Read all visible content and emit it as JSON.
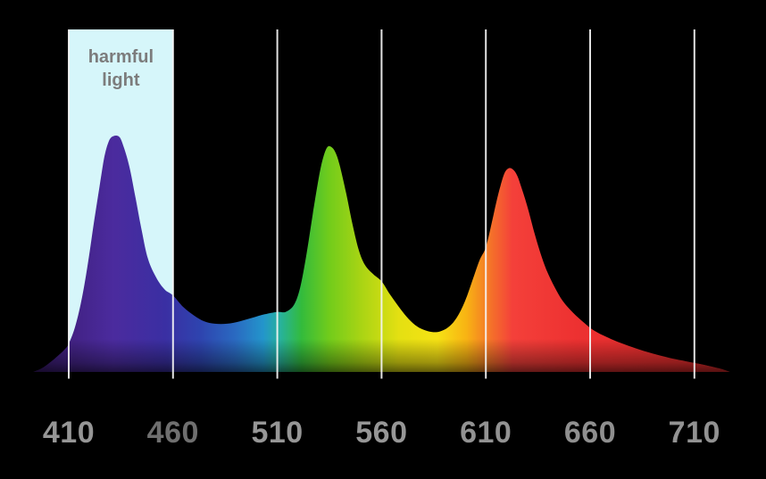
{
  "page": {
    "background_color": "#000000"
  },
  "band": {
    "label_line1": "harmful",
    "label_line2": "light",
    "fill_color": "#d6f6fa",
    "text_color": "#7c7c7c",
    "range_nm": [
      410,
      460
    ]
  },
  "axis": {
    "gridline_color": "#f4f4f4",
    "ticks": [
      {
        "label": "410",
        "nm": 410,
        "color": "#969696"
      },
      {
        "label": "460",
        "nm": 460,
        "color": "#6f6f6f"
      },
      {
        "label": "510",
        "nm": 510,
        "color": "#969696"
      },
      {
        "label": "560",
        "nm": 560,
        "color": "#969696"
      },
      {
        "label": "610",
        "nm": 610,
        "color": "#929292"
      },
      {
        "label": "660",
        "nm": 660,
        "color": "#8f8f8f"
      },
      {
        "label": "710",
        "nm": 710,
        "color": "#929292"
      }
    ]
  },
  "chart_data": {
    "type": "area",
    "title": "",
    "xlabel": "",
    "ylabel": "",
    "x_tick_labels": [
      "410",
      "460",
      "510",
      "560",
      "610",
      "660",
      "710"
    ],
    "x_units_nm": [
      410,
      460,
      510,
      560,
      610,
      660,
      710
    ],
    "xlim_nm": [
      393,
      727
    ],
    "ylim": [
      0,
      1
    ],
    "grid": "vertical-white-lines-over-fill",
    "annotations": [
      {
        "text": "harmful light",
        "type": "highlight-band",
        "x_range_nm": [
          410,
          460
        ]
      }
    ],
    "peaks": [
      {
        "nm": 431,
        "intensity": 1.0,
        "color_zone": "violet"
      },
      {
        "nm": 535,
        "intensity": 0.955,
        "color_zone": "green"
      },
      {
        "nm": 620,
        "intensity": 0.865,
        "color_zone": "red"
      }
    ],
    "points": [
      [
        393,
        0.0
      ],
      [
        397,
        0.015
      ],
      [
        401,
        0.04
      ],
      [
        405,
        0.07
      ],
      [
        408,
        0.095
      ],
      [
        410,
        0.12
      ],
      [
        413,
        0.19
      ],
      [
        416,
        0.3
      ],
      [
        419,
        0.45
      ],
      [
        422,
        0.63
      ],
      [
        425,
        0.8
      ],
      [
        427,
        0.91
      ],
      [
        429,
        0.975
      ],
      [
        431,
        1.0
      ],
      [
        434,
        1.0
      ],
      [
        436,
        0.965
      ],
      [
        439,
        0.875
      ],
      [
        442,
        0.74
      ],
      [
        445,
        0.6
      ],
      [
        448,
        0.48
      ],
      [
        452,
        0.4
      ],
      [
        456,
        0.35
      ],
      [
        460,
        0.325
      ],
      [
        465,
        0.275
      ],
      [
        470,
        0.24
      ],
      [
        475,
        0.215
      ],
      [
        480,
        0.205
      ],
      [
        486,
        0.205
      ],
      [
        492,
        0.215
      ],
      [
        498,
        0.23
      ],
      [
        504,
        0.245
      ],
      [
        510,
        0.255
      ],
      [
        514,
        0.255
      ],
      [
        518,
        0.285
      ],
      [
        521,
        0.36
      ],
      [
        524,
        0.5
      ],
      [
        527,
        0.67
      ],
      [
        530,
        0.83
      ],
      [
        532,
        0.91
      ],
      [
        534,
        0.955
      ],
      [
        536,
        0.955
      ],
      [
        538,
        0.93
      ],
      [
        540,
        0.875
      ],
      [
        543,
        0.76
      ],
      [
        546,
        0.63
      ],
      [
        549,
        0.52
      ],
      [
        552,
        0.455
      ],
      [
        556,
        0.415
      ],
      [
        560,
        0.385
      ],
      [
        564,
        0.33
      ],
      [
        568,
        0.28
      ],
      [
        572,
        0.235
      ],
      [
        576,
        0.2
      ],
      [
        580,
        0.18
      ],
      [
        584,
        0.17
      ],
      [
        588,
        0.172
      ],
      [
        592,
        0.19
      ],
      [
        596,
        0.23
      ],
      [
        600,
        0.3
      ],
      [
        604,
        0.4
      ],
      [
        607,
        0.475
      ],
      [
        610,
        0.53
      ],
      [
        613,
        0.64
      ],
      [
        615,
        0.72
      ],
      [
        617,
        0.79
      ],
      [
        619,
        0.845
      ],
      [
        621,
        0.865
      ],
      [
        623,
        0.86
      ],
      [
        625,
        0.835
      ],
      [
        627,
        0.785
      ],
      [
        630,
        0.7
      ],
      [
        633,
        0.6
      ],
      [
        636,
        0.51
      ],
      [
        639,
        0.435
      ],
      [
        643,
        0.36
      ],
      [
        647,
        0.3
      ],
      [
        652,
        0.25
      ],
      [
        657,
        0.21
      ],
      [
        662,
        0.175
      ],
      [
        668,
        0.148
      ],
      [
        675,
        0.122
      ],
      [
        682,
        0.1
      ],
      [
        690,
        0.078
      ],
      [
        698,
        0.06
      ],
      [
        706,
        0.045
      ],
      [
        712,
        0.035
      ],
      [
        718,
        0.023
      ],
      [
        723,
        0.012
      ],
      [
        727,
        0.0
      ]
    ],
    "fill_gradient": [
      {
        "offset": 0.0,
        "color": "#3a1a6d"
      },
      {
        "offset": 0.115,
        "color": "#4b2b9e"
      },
      {
        "offset": 0.19,
        "color": "#3a2fa3"
      },
      {
        "offset": 0.24,
        "color": "#2e44af"
      },
      {
        "offset": 0.29,
        "color": "#2a6ac1"
      },
      {
        "offset": 0.33,
        "color": "#2395cb"
      },
      {
        "offset": 0.355,
        "color": "#27b29b"
      },
      {
        "offset": 0.385,
        "color": "#33bb3c"
      },
      {
        "offset": 0.425,
        "color": "#72cc1b"
      },
      {
        "offset": 0.47,
        "color": "#a8d414"
      },
      {
        "offset": 0.525,
        "color": "#e4e012"
      },
      {
        "offset": 0.58,
        "color": "#f6e214"
      },
      {
        "offset": 0.622,
        "color": "#f8b313"
      },
      {
        "offset": 0.658,
        "color": "#f4702a"
      },
      {
        "offset": 0.688,
        "color": "#f4403a"
      },
      {
        "offset": 0.78,
        "color": "#ed3131"
      },
      {
        "offset": 1.0,
        "color": "#d92a2a"
      }
    ]
  }
}
